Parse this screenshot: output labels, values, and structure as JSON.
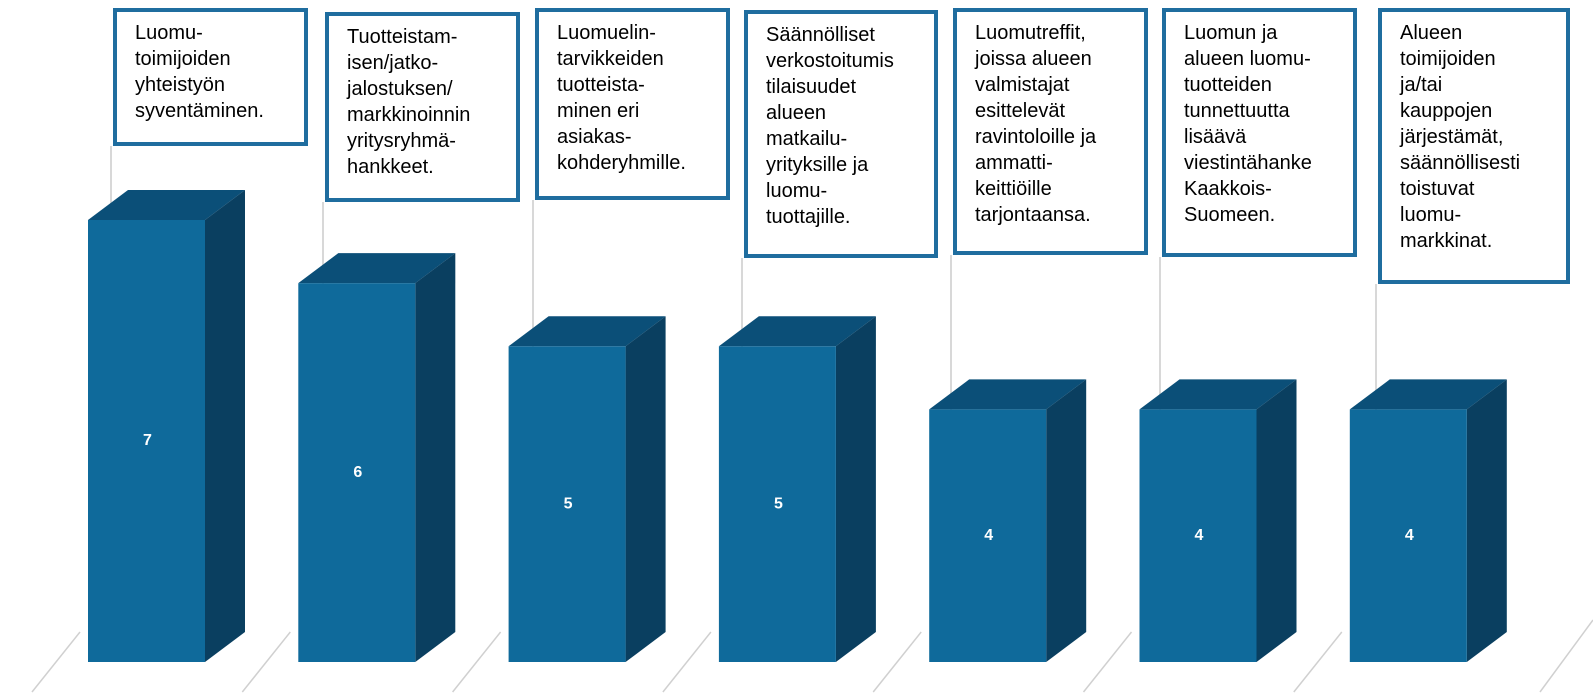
{
  "chart_data": {
    "type": "bar3d",
    "categories": [
      "Luomu-\ntoimijoiden\nyhteistyön\nsyventäminen.",
      "Tuotteistam-\nisen/jatko-\njalostuksen/\nmarkkinoinnin\nyritysryhmä-\nhankkeet.",
      "Luomuelin-\ntarvikkeiden\ntuotteista-\nminen eri\nasiakas-\nkohderyhmille.",
      "Säännölliset\nverkostoitumis\ntilaisuudet\nalueen\nmatkailu-\nyrityksille ja\nluomu-\ntuottajille.",
      "Luomutreffit,\njoissa alueen\nvalmistajat\nesittelevät\nravintoloille ja\nammatti-\nkeittiöille\ntarjontaansa.",
      "Luomun ja\nalueen luomu-\ntuotteiden\ntunnettuutta\nlisäävä\nviestintähanke\nKaakkois-\nSuomeen.",
      "Alueen\ntoimijoiden\nja/tai\nkauppojen\njärjestämät,\nsäännöllisesti\ntoistuvat\nluomu-\nmarkkinat."
    ],
    "values": [
      7,
      6,
      5,
      5,
      4,
      4,
      4
    ],
    "color": "#0f6a9b",
    "ylim": [
      0,
      7
    ]
  }
}
